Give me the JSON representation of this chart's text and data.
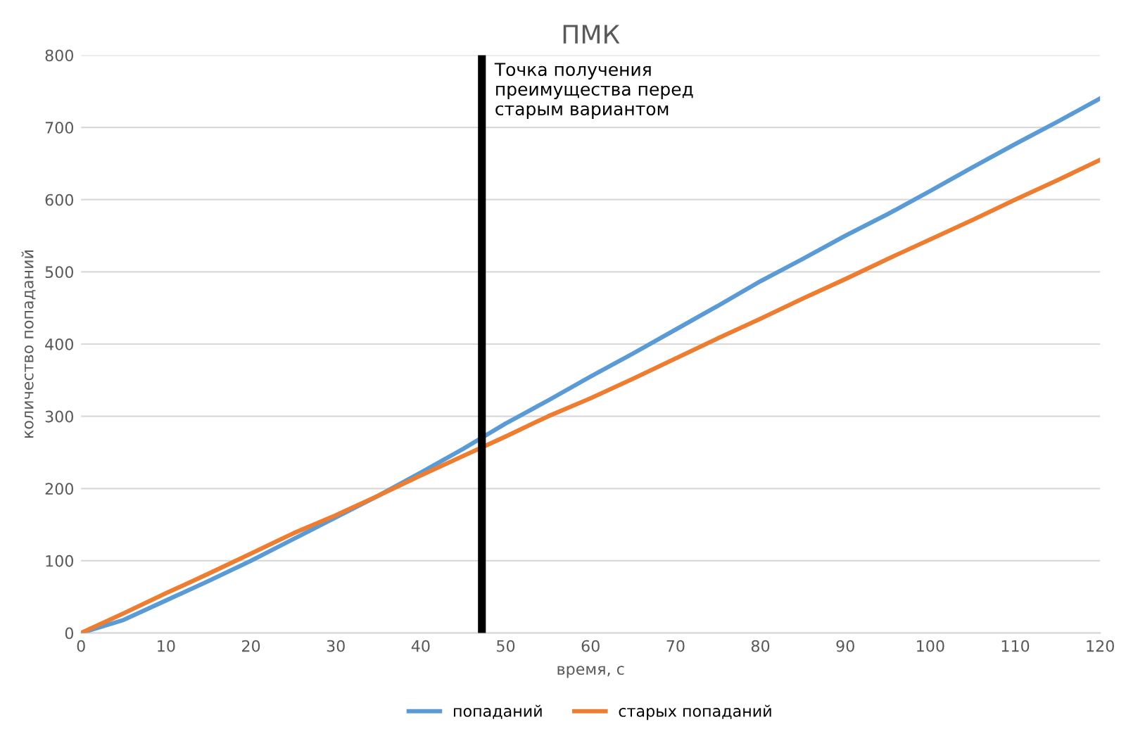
{
  "chart_data": {
    "type": "line",
    "title": "ПМК",
    "xlabel": "время, с",
    "ylabel": "количество попаданий",
    "x": [
      0,
      5,
      10,
      15,
      20,
      25,
      30,
      35,
      40,
      45,
      50,
      55,
      60,
      65,
      70,
      75,
      80,
      85,
      90,
      95,
      100,
      105,
      110,
      115,
      120
    ],
    "series": [
      {
        "name": "попаданий",
        "color": "#5b9bd5",
        "values": [
          0,
          18,
          45,
          72,
          100,
          130,
          160,
          190,
          222,
          255,
          290,
          322,
          355,
          387,
          420,
          453,
          487,
          518,
          550,
          580,
          612,
          645,
          677,
          708,
          740
        ]
      },
      {
        "name": "старых попаданий",
        "color": "#ed7d31",
        "values": [
          0,
          27,
          55,
          82,
          110,
          138,
          163,
          190,
          218,
          245,
          272,
          300,
          325,
          352,
          380,
          408,
          435,
          463,
          490,
          518,
          545,
          572,
          600,
          627,
          655
        ]
      }
    ],
    "ref_lines": [
      {
        "axis": "x",
        "value": 47.2,
        "label": "Точка получения\nпреимущества перед\nстарым вариантом",
        "color": "#000000"
      }
    ],
    "xlim": [
      0,
      120
    ],
    "ylim": [
      0,
      800
    ],
    "xticks": [
      0,
      10,
      20,
      30,
      40,
      50,
      60,
      70,
      80,
      90,
      100,
      110,
      120
    ],
    "yticks": [
      0,
      100,
      200,
      300,
      400,
      500,
      600,
      700,
      800
    ],
    "grid": "y",
    "legend": "bottom",
    "marker": "none",
    "line_style": "solid"
  }
}
